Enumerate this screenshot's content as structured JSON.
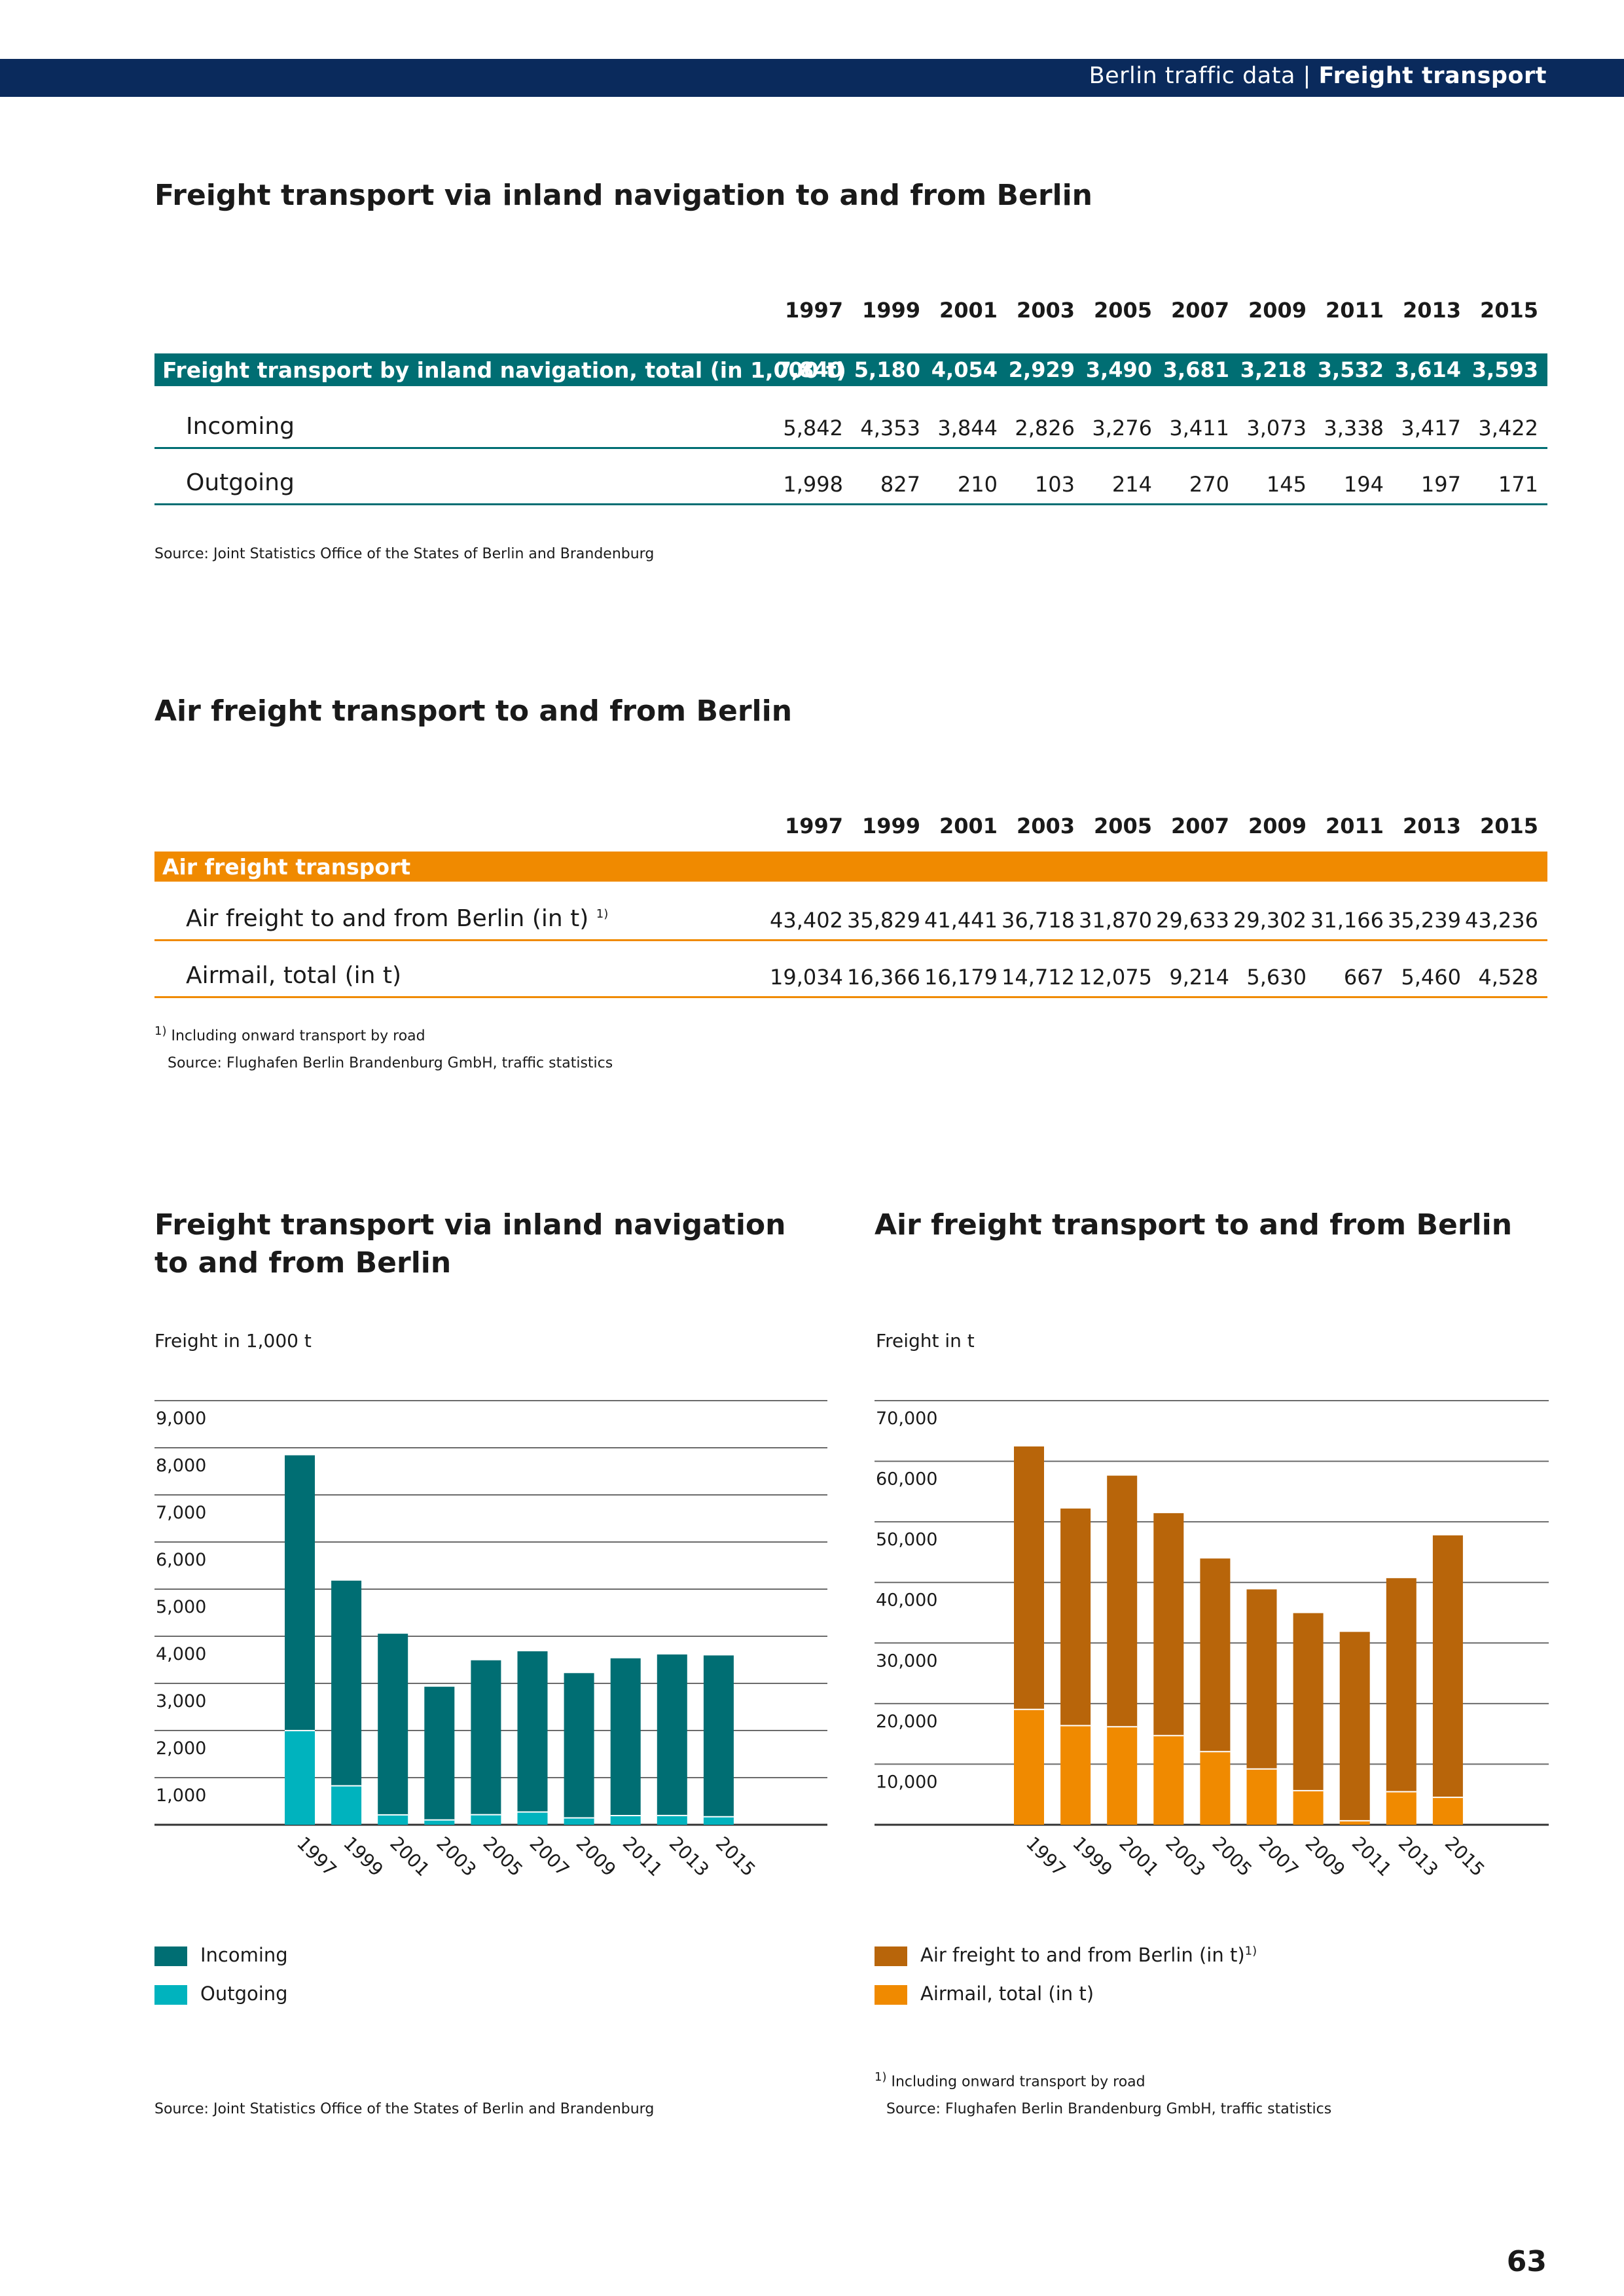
{
  "header": {
    "section": "Berlin traffic data",
    "separator": "|",
    "topic": "Freight transport"
  },
  "table1": {
    "title": "Freight transport via inland navigation to and from Berlin",
    "years": [
      "1997",
      "1999",
      "2001",
      "2003",
      "2005",
      "2007",
      "2009",
      "2011",
      "2013",
      "2015"
    ],
    "total": {
      "label": "Freight transport by inland navigation, total (in 1,000 t)",
      "values": [
        "7,840",
        "5,180",
        "4,054",
        "2,929",
        "3,490",
        "3,681",
        "3,218",
        "3,532",
        "3,614",
        "3,593"
      ]
    },
    "rows": [
      {
        "label": "Incoming",
        "values": [
          "5,842",
          "4,353",
          "3,844",
          "2,826",
          "3,276",
          "3,411",
          "3,073",
          "3,338",
          "3,417",
          "3,422"
        ]
      },
      {
        "label": "Outgoing",
        "values": [
          "1,998",
          "827",
          "210",
          "103",
          "214",
          "270",
          "145",
          "194",
          "197",
          "171"
        ]
      }
    ],
    "source": "Source: Joint Statistics Office of the States of Berlin and Brandenburg"
  },
  "table2": {
    "title": "Air freight transport to and from Berlin",
    "years": [
      "1997",
      "1999",
      "2001",
      "2003",
      "2005",
      "2007",
      "2009",
      "2011",
      "2013",
      "2015"
    ],
    "header_label": "Air freight transport",
    "rows": [
      {
        "label": "Air freight to and from Berlin (in t)",
        "sup": "1)",
        "values": [
          "43,402",
          "35,829",
          "41,441",
          "36,718",
          "31,870",
          "29,633",
          "29,302",
          "31,166",
          "35,239",
          "43,236"
        ]
      },
      {
        "label": "Airmail, total (in t)",
        "sup": "",
        "values": [
          "19,034",
          "16,366",
          "16,179",
          "14,712",
          "12,075",
          "9,214",
          "5,630",
          "667",
          "5,460",
          "4,528"
        ]
      }
    ],
    "footnote_mark": "1)",
    "footnote": "Including onward transport by road",
    "source": "Source: Flughafen Berlin Brandenburg GmbH, traffic statistics"
  },
  "chart1_text": {
    "title_line1": "Freight transport via inland navigation",
    "title_line2": "to and from Berlin",
    "unit": "Freight in 1,000 t",
    "source": "Source: Joint Statistics Office of the States of Berlin and Brandenburg"
  },
  "chart2_text": {
    "title": "Air freight transport to and from Berlin",
    "unit": "Freight in t",
    "footnote_mark": "1)",
    "footnote": "Including onward transport by road",
    "source": "Source: Flughafen Berlin Brandenburg GmbH, traffic statistics"
  },
  "chart_data": [
    {
      "type": "bar",
      "stacked": true,
      "title": "Freight transport via inland navigation to and from Berlin",
      "ylabel": "Freight in 1,000 t",
      "categories": [
        "1997",
        "1999",
        "2001",
        "2003",
        "2005",
        "2007",
        "2009",
        "2011",
        "2013",
        "2015"
      ],
      "series": [
        {
          "name": "Outgoing",
          "color": "#00b3be",
          "values": [
            1998,
            827,
            210,
            103,
            214,
            270,
            145,
            194,
            197,
            171
          ]
        },
        {
          "name": "Incoming",
          "color": "#006e73",
          "values": [
            5842,
            4353,
            3844,
            2826,
            3276,
            3411,
            3073,
            3338,
            3417,
            3422
          ]
        }
      ],
      "ylim": [
        0,
        9000
      ],
      "yticks": [
        1000,
        2000,
        3000,
        4000,
        5000,
        6000,
        7000,
        8000,
        9000
      ],
      "ytick_labels": [
        "1,000",
        "2,000",
        "3,000",
        "4,000",
        "5,000",
        "6,000",
        "7,000",
        "8,000",
        "9,000"
      ],
      "grid": true,
      "legend": [
        "Incoming",
        "Outgoing"
      ],
      "legend_position": "bottom-left"
    },
    {
      "type": "bar",
      "stacked": true,
      "title": "Air freight transport to and from Berlin",
      "ylabel": "Freight in t",
      "categories": [
        "1997",
        "1999",
        "2001",
        "2003",
        "2005",
        "2007",
        "2009",
        "2011",
        "2013",
        "2015"
      ],
      "series": [
        {
          "name": "Airmail, total (in t)",
          "color": "#f08a00",
          "values": [
            19034,
            16366,
            16179,
            14712,
            12075,
            9214,
            5630,
            667,
            5460,
            4528
          ]
        },
        {
          "name": "Air freight to and from Berlin (in t)",
          "color": "#b8650a",
          "values": [
            43402,
            35829,
            41441,
            36718,
            31870,
            29633,
            29302,
            31166,
            35239,
            43236
          ]
        }
      ],
      "ylim": [
        0,
        70000
      ],
      "yticks": [
        10000,
        20000,
        30000,
        40000,
        50000,
        60000,
        70000
      ],
      "ytick_labels": [
        "10,000",
        "20,000",
        "30,000",
        "40,000",
        "50,000",
        "60,000",
        "70,000"
      ],
      "grid": true,
      "legend": [
        "Air freight to and from Berlin (in t)",
        "Airmail, total (in t)"
      ],
      "legend_sup": "1)",
      "legend_position": "bottom-left"
    }
  ],
  "colors": {
    "navy": "#0a2a5c",
    "teal_dark": "#006e73",
    "teal_light": "#00b3be",
    "orange": "#f08a00",
    "orange_dark": "#b8650a"
  },
  "page_number": "63"
}
